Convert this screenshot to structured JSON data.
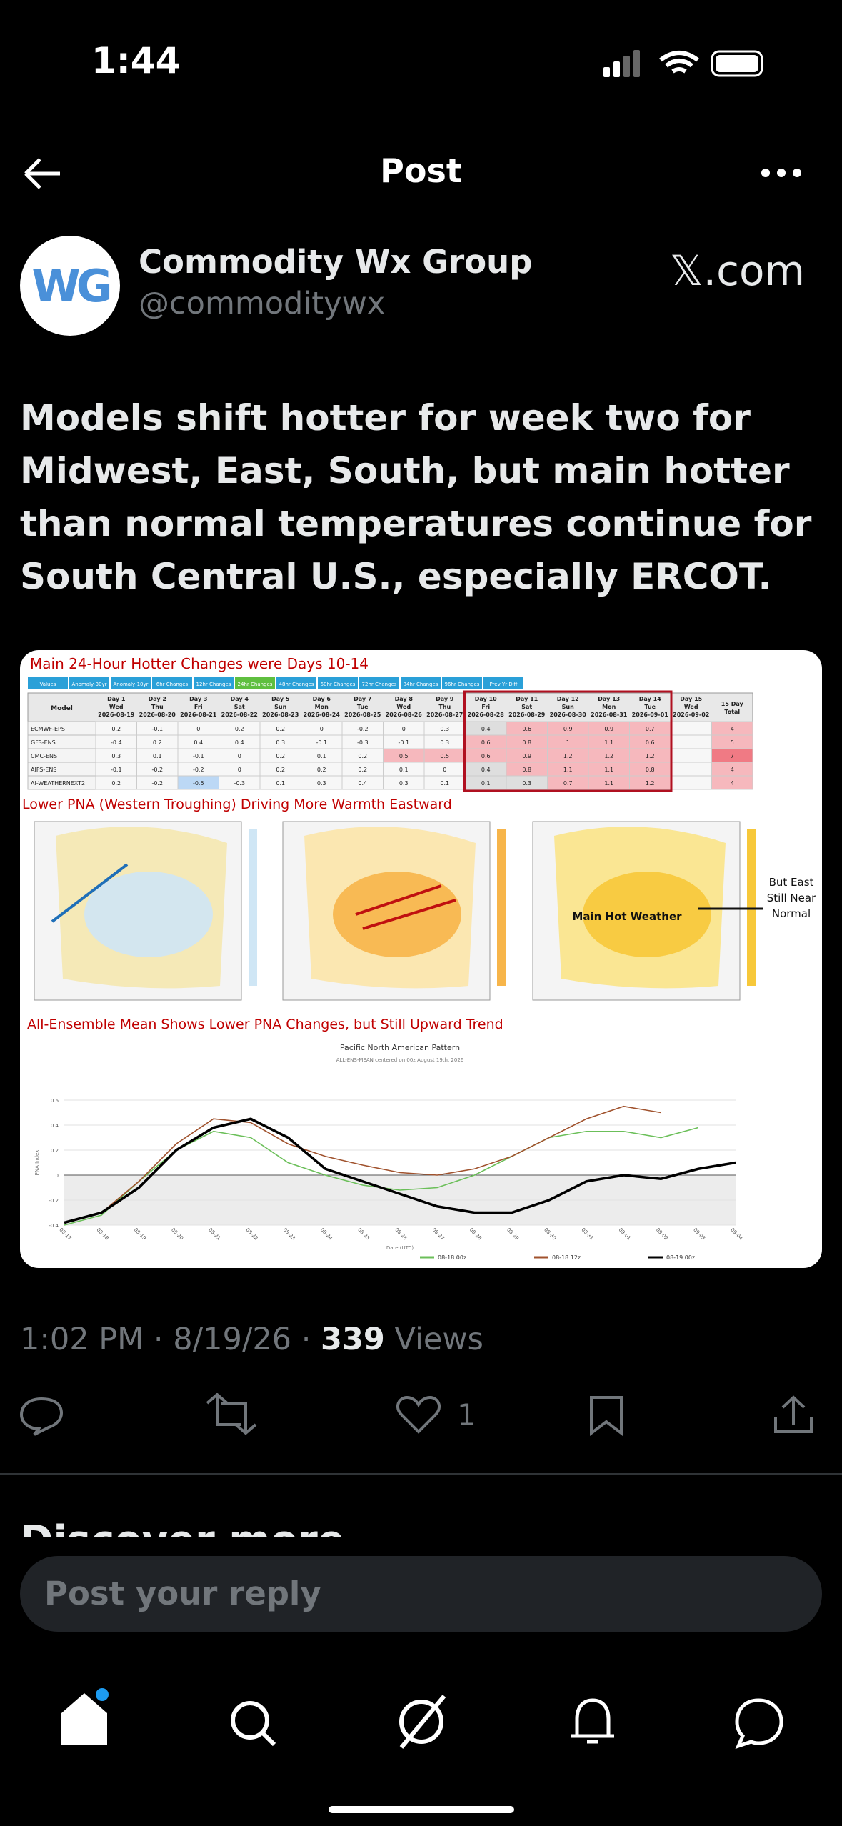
{
  "status": {
    "time": "1:44"
  },
  "header": {
    "title": "Post"
  },
  "post": {
    "avatar_text": "WG",
    "author": "Commodity Wx Group",
    "handle": "@commoditywx",
    "source": "𝕏.com",
    "text": "Models shift hotter for week two for Midwest, East, South, but main hotter than normal temperatures continue for South Central U.S., especially ERCOT.",
    "image": {
      "table_title": "Main 24-Hour Hotter Changes were Days 10-14",
      "tabs": [
        "Values",
        "Anomaly-30yr",
        "Anomaly-10yr",
        "6hr Changes",
        "12hr Changes",
        "24hr Changes",
        "48hr Changes",
        "60hr Changes",
        "72hr Changes",
        "84hr Changes",
        "96hr Changes",
        "Prev Yr Diff"
      ],
      "model_header": "Model",
      "columns": [
        {
          "day": "Day 1",
          "weekday": "Wed",
          "date": "2026-08-19"
        },
        {
          "day": "Day 2",
          "weekday": "Thu",
          "date": "2026-08-20"
        },
        {
          "day": "Day 3",
          "weekday": "Fri",
          "date": "2026-08-21"
        },
        {
          "day": "Day 4",
          "weekday": "Sat",
          "date": "2026-08-22"
        },
        {
          "day": "Day 5",
          "weekday": "Sun",
          "date": "2026-08-23"
        },
        {
          "day": "Day 6",
          "weekday": "Mon",
          "date": "2026-08-24"
        },
        {
          "day": "Day 7",
          "weekday": "Tue",
          "date": "2026-08-25"
        },
        {
          "day": "Day 8",
          "weekday": "Wed",
          "date": "2026-08-26"
        },
        {
          "day": "Day 9",
          "weekday": "Thu",
          "date": "2026-08-27"
        },
        {
          "day": "Day 10",
          "weekday": "Fri",
          "date": "2026-08-28"
        },
        {
          "day": "Day 11",
          "weekday": "Sat",
          "date": "2026-08-29"
        },
        {
          "day": "Day 12",
          "weekday": "Sun",
          "date": "2026-08-30"
        },
        {
          "day": "Day 13",
          "weekday": "Mon",
          "date": "2026-08-31"
        },
        {
          "day": "Day 14",
          "weekday": "Tue",
          "date": "2026-09-01"
        },
        {
          "day": "Day 15",
          "weekday": "Wed",
          "date": "2026-09-02"
        }
      ],
      "total_header": "15 Day Total",
      "rows": [
        {
          "model": "ECMWF-EPS",
          "values": [
            0.2,
            -0.1,
            0,
            0.2,
            0.2,
            0,
            -0.2,
            0,
            0.3,
            0.4,
            0.6,
            0.9,
            0.9,
            0.7
          ],
          "total": 4
        },
        {
          "model": "GFS-ENS",
          "values": [
            -0.4,
            0.2,
            0.4,
            0.4,
            0.3,
            -0.1,
            -0.3,
            -0.1,
            0.3,
            0.6,
            0.8,
            1,
            1.1,
            0.6
          ],
          "total": 5
        },
        {
          "model": "CMC-ENS",
          "values": [
            0.3,
            0.1,
            -0.1,
            0,
            0.2,
            0.1,
            0.2,
            0.5,
            0.5,
            0.6,
            0.9,
            1.2,
            1.2,
            1.2
          ],
          "total": 7
        },
        {
          "model": "AIFS-ENS",
          "values": [
            -0.1,
            -0.2,
            -0.2,
            0,
            0.2,
            0.2,
            0.2,
            0.1,
            0,
            0.4,
            0.8,
            1.1,
            1.1,
            0.8
          ],
          "total": 4
        },
        {
          "model": "AI-WEATHERNEXT2",
          "values": [
            0.2,
            -0.2,
            -0.5,
            -0.3,
            0.1,
            0.3,
            0.4,
            0.3,
            0.1,
            0.1,
            0.3,
            0.7,
            1.1,
            1.2
          ],
          "total": 4
        }
      ],
      "maps_title": "Lower PNA (Western Troughing) Driving More Warmth Eastward",
      "map_annotations": [
        "Main Hot Weather",
        "But East Still Near Normal"
      ],
      "chart_title": "All-Ensemble Mean Shows Lower PNA Changes, but Still Upward Trend",
      "chart_data": {
        "type": "line",
        "title": "Pacific North American Pattern",
        "subtitle": "ALL-ENS-MEAN centered on 00z August 19th, 2026",
        "y_label": "PNA Index",
        "x_label": "Date (UTC)",
        "categories": [
          "08-17",
          "08-18",
          "08-19",
          "08-20",
          "08-21",
          "08-22",
          "08-23",
          "08-24",
          "08-25",
          "08-26",
          "08-27",
          "08-28",
          "08-29",
          "08-30",
          "08-31",
          "09-01",
          "09-02",
          "09-03",
          "09-04"
        ],
        "ylim": [
          -0.4,
          0.6
        ],
        "yticks": [
          -0.4,
          -0.2,
          0,
          0.2,
          0.4,
          0.6
        ],
        "series": [
          {
            "name": "08-18 00z",
            "color": "#6bbf59",
            "values": [
              -0.4,
              -0.32,
              -0.05,
              0.2,
              0.35,
              0.3,
              0.1,
              0,
              -0.08,
              -0.12,
              -0.1,
              0,
              0.15,
              0.3,
              0.35,
              0.35,
              0.3,
              0.38,
              null
            ]
          },
          {
            "name": "08-18 12z",
            "color": "#a0522d",
            "values": [
              -0.38,
              -0.3,
              -0.05,
              0.25,
              0.45,
              0.42,
              0.25,
              0.15,
              0.08,
              0.02,
              0,
              0.05,
              0.15,
              0.3,
              0.45,
              0.55,
              0.5,
              null,
              null
            ]
          },
          {
            "name": "08-19 00z",
            "color": "#000000",
            "values": [
              -0.38,
              -0.3,
              -0.1,
              0.2,
              0.38,
              0.45,
              0.3,
              0.05,
              -0.05,
              -0.15,
              -0.25,
              -0.3,
              -0.3,
              -0.2,
              -0.05,
              0,
              -0.03,
              0.05,
              0.1
            ]
          }
        ]
      }
    }
  },
  "meta": {
    "time": "1:02 PM · 8/19/26 · ",
    "views": "339",
    "views_label": " Views"
  },
  "actions": {
    "likes": 1
  },
  "discover": "Discover more",
  "reply_placeholder": "Post your reply"
}
